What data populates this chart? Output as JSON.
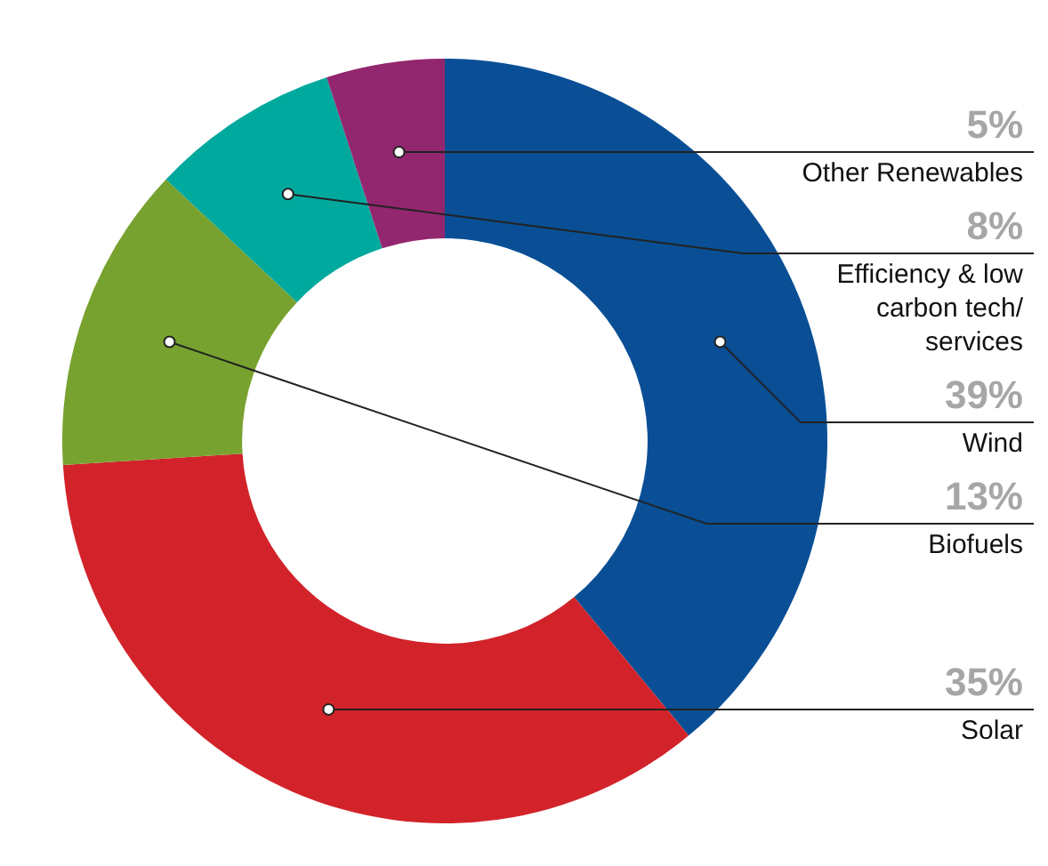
{
  "chart_data": {
    "type": "donut",
    "categories": [
      "Wind",
      "Solar",
      "Biofuels",
      "Efficiency & low carbon tech/ services",
      "Other Renewables"
    ],
    "values": [
      39,
      35,
      13,
      8,
      5
    ],
    "value_labels": [
      "39%",
      "35%",
      "13%",
      "8%",
      "5%"
    ],
    "colors": [
      "#0a4f96",
      "#d2232a",
      "#78a22f",
      "#00a99d",
      "#93276f"
    ],
    "legend": false
  }
}
